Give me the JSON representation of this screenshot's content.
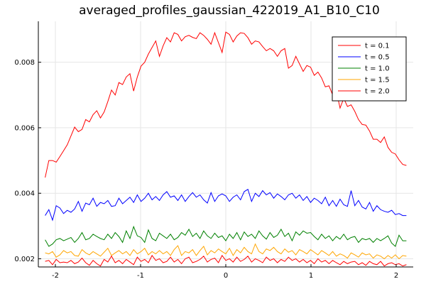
{
  "chart_data": {
    "type": "line",
    "title": "averaged_profiles_gaussian_422019_A1_B10_C10",
    "xlabel": "",
    "ylabel": "",
    "xlim": [
      -2.2,
      2.2
    ],
    "ylim": [
      0.00175,
      0.00925
    ],
    "x_ticks": [
      -2,
      -1,
      0,
      1,
      2
    ],
    "x_tick_labels": [
      "-2",
      "-1",
      "0",
      "1",
      "2"
    ],
    "y_ticks": [
      0.002,
      0.004,
      0.006,
      0.008
    ],
    "y_tick_labels": [
      "0.002",
      "0.004",
      "0.006",
      "0.008"
    ],
    "grid": true,
    "legend_position": "top-right",
    "x_range": [
      -2.12,
      2.12
    ],
    "series": [
      {
        "name": "t = 0.1",
        "color": "#ff0000",
        "values": [
          0.00448,
          0.005,
          0.005,
          0.00495,
          0.00512,
          0.0053,
          0.00548,
          0.00575,
          0.00602,
          0.00588,
          0.00595,
          0.00625,
          0.00618,
          0.0064,
          0.00652,
          0.0063,
          0.00648,
          0.0068,
          0.00715,
          0.007,
          0.00738,
          0.00732,
          0.00755,
          0.00765,
          0.00712,
          0.00755,
          0.00788,
          0.008,
          0.00825,
          0.00845,
          0.00865,
          0.00818,
          0.0085,
          0.00875,
          0.00862,
          0.0089,
          0.00885,
          0.00865,
          0.00878,
          0.00882,
          0.00876,
          0.00872,
          0.0089,
          0.00882,
          0.0087,
          0.00855,
          0.0089,
          0.0086,
          0.0083,
          0.00892,
          0.00885,
          0.00862,
          0.0088,
          0.0089,
          0.00888,
          0.00875,
          0.00855,
          0.00865,
          0.00862,
          0.00848,
          0.00835,
          0.00842,
          0.00835,
          0.00818,
          0.00835,
          0.00842,
          0.00782,
          0.0079,
          0.00818,
          0.00795,
          0.00772,
          0.0079,
          0.00785,
          0.0076,
          0.0077,
          0.00752,
          0.00725,
          0.00728,
          0.007,
          0.00712,
          0.0066,
          0.0069,
          0.00665,
          0.0067,
          0.0065,
          0.00625,
          0.0061,
          0.00608,
          0.0059,
          0.00565,
          0.00565,
          0.00555,
          0.00572,
          0.0054,
          0.00525,
          0.0052,
          0.00502,
          0.00488,
          0.00485
        ]
      },
      {
        "name": "t = 0.5",
        "color": "#0000ff",
        "values": [
          0.00332,
          0.0035,
          0.00318,
          0.00362,
          0.00355,
          0.00338,
          0.00348,
          0.00342,
          0.00352,
          0.00375,
          0.00345,
          0.0037,
          0.00365,
          0.00385,
          0.0036,
          0.00372,
          0.00368,
          0.00378,
          0.0036,
          0.00362,
          0.00385,
          0.00368,
          0.00378,
          0.00388,
          0.00372,
          0.00395,
          0.00375,
          0.00385,
          0.004,
          0.0038,
          0.0039,
          0.00378,
          0.00395,
          0.00405,
          0.00388,
          0.00392,
          0.00378,
          0.00395,
          0.00375,
          0.0039,
          0.00402,
          0.00388,
          0.00395,
          0.0038,
          0.0037,
          0.00402,
          0.00375,
          0.00392,
          0.00398,
          0.00392,
          0.00375,
          0.00388,
          0.00395,
          0.0038,
          0.00405,
          0.00412,
          0.00375,
          0.004,
          0.0039,
          0.00408,
          0.00395,
          0.00402,
          0.00385,
          0.00398,
          0.0039,
          0.0038,
          0.00395,
          0.004,
          0.00385,
          0.00395,
          0.00378,
          0.0039,
          0.00372,
          0.00385,
          0.00378,
          0.00368,
          0.00388,
          0.00362,
          0.00378,
          0.0036,
          0.00382,
          0.00365,
          0.0036,
          0.00408,
          0.00362,
          0.00378,
          0.00358,
          0.00352,
          0.00372,
          0.00345,
          0.00362,
          0.0035,
          0.00345,
          0.00342,
          0.00348,
          0.00335,
          0.00338,
          0.00332,
          0.00332
        ]
      },
      {
        "name": "t = 1.0",
        "color": "#008000",
        "values": [
          0.00258,
          0.00238,
          0.00245,
          0.00258,
          0.00262,
          0.00255,
          0.0026,
          0.00265,
          0.0025,
          0.00262,
          0.0028,
          0.00258,
          0.00262,
          0.00275,
          0.00268,
          0.00262,
          0.00258,
          0.00275,
          0.00262,
          0.0028,
          0.00268,
          0.0025,
          0.00285,
          0.00262,
          0.00298,
          0.0027,
          0.00265,
          0.0025,
          0.00288,
          0.00262,
          0.00255,
          0.00278,
          0.0027,
          0.00262,
          0.00275,
          0.00258,
          0.00265,
          0.0028,
          0.00272,
          0.0029,
          0.00268,
          0.00278,
          0.00262,
          0.00285,
          0.0027,
          0.00262,
          0.00278,
          0.00265,
          0.0027,
          0.00255,
          0.00275,
          0.00262,
          0.0028,
          0.00258,
          0.00282,
          0.00268,
          0.00275,
          0.00262,
          0.00285,
          0.0027,
          0.0026,
          0.0028,
          0.00265,
          0.00272,
          0.0029,
          0.00268,
          0.00278,
          0.00255,
          0.00282,
          0.00272,
          0.00285,
          0.00278,
          0.0028,
          0.00268,
          0.00258,
          0.00275,
          0.00262,
          0.0027,
          0.00255,
          0.00268,
          0.0026,
          0.00275,
          0.00258,
          0.00265,
          0.00268,
          0.0025,
          0.00262,
          0.00258,
          0.00262,
          0.0025,
          0.00262,
          0.00255,
          0.00262,
          0.0027,
          0.00248,
          0.00238,
          0.00272,
          0.00255,
          0.00255
        ]
      },
      {
        "name": "t = 1.5",
        "color": "#ffa500",
        "values": [
          0.00218,
          0.00215,
          0.00222,
          0.00205,
          0.00212,
          0.00225,
          0.00218,
          0.00222,
          0.0021,
          0.00208,
          0.00228,
          0.00218,
          0.00212,
          0.00222,
          0.00215,
          0.00208,
          0.0022,
          0.00232,
          0.0021,
          0.00218,
          0.00225,
          0.00215,
          0.00222,
          0.0021,
          0.00228,
          0.00215,
          0.00222,
          0.00232,
          0.00212,
          0.00222,
          0.00215,
          0.00225,
          0.00215,
          0.00222,
          0.0021,
          0.00228,
          0.0024,
          0.0021,
          0.00222,
          0.00218,
          0.00228,
          0.0021,
          0.00225,
          0.00238,
          0.00212,
          0.00225,
          0.00218,
          0.0023,
          0.00222,
          0.00215,
          0.00232,
          0.0021,
          0.00228,
          0.00218,
          0.00235,
          0.00222,
          0.00215,
          0.00245,
          0.00222,
          0.00215,
          0.0023,
          0.00225,
          0.00235,
          0.00222,
          0.00215,
          0.0023,
          0.0022,
          0.00225,
          0.00212,
          0.00228,
          0.00222,
          0.00215,
          0.00228,
          0.0022,
          0.00212,
          0.00225,
          0.00218,
          0.0021,
          0.00222,
          0.00208,
          0.00215,
          0.0021,
          0.00202,
          0.00218,
          0.00212,
          0.00205,
          0.00218,
          0.00212,
          0.00215,
          0.00202,
          0.00212,
          0.00208,
          0.002,
          0.0021,
          0.00202,
          0.00212,
          0.002,
          0.0021,
          0.00208
        ]
      },
      {
        "name": "t = 2.0",
        "color": "#ff0000",
        "values": [
          0.00192,
          0.00195,
          0.00182,
          0.00198,
          0.00188,
          0.0019,
          0.00188,
          0.00195,
          0.00185,
          0.0019,
          0.00202,
          0.00188,
          0.0018,
          0.00195,
          0.00185,
          0.00178,
          0.00198,
          0.0019,
          0.00208,
          0.00188,
          0.00195,
          0.00185,
          0.00198,
          0.0019,
          0.00182,
          0.00205,
          0.00192,
          0.00198,
          0.00188,
          0.0021,
          0.00195,
          0.002,
          0.00188,
          0.00192,
          0.00205,
          0.0019,
          0.00198,
          0.00185,
          0.002,
          0.00205,
          0.00188,
          0.00192,
          0.00198,
          0.00208,
          0.0019,
          0.00198,
          0.00202,
          0.00188,
          0.0021,
          0.00195,
          0.002,
          0.0019,
          0.00205,
          0.00192,
          0.00198,
          0.00208,
          0.0019,
          0.002,
          0.00195,
          0.00188,
          0.00205,
          0.00195,
          0.002,
          0.00188,
          0.00198,
          0.00192,
          0.00205,
          0.00195,
          0.002,
          0.0019,
          0.00198,
          0.00188,
          0.00195,
          0.00185,
          0.002,
          0.0019,
          0.00195,
          0.00185,
          0.00195,
          0.00188,
          0.00182,
          0.00192,
          0.00185,
          0.0019,
          0.00192,
          0.00182,
          0.00188,
          0.0018,
          0.00192,
          0.00185,
          0.00182,
          0.00192,
          0.00178,
          0.00185,
          0.00188,
          0.00182,
          0.00185,
          0.00178,
          0.00182
        ]
      }
    ]
  }
}
